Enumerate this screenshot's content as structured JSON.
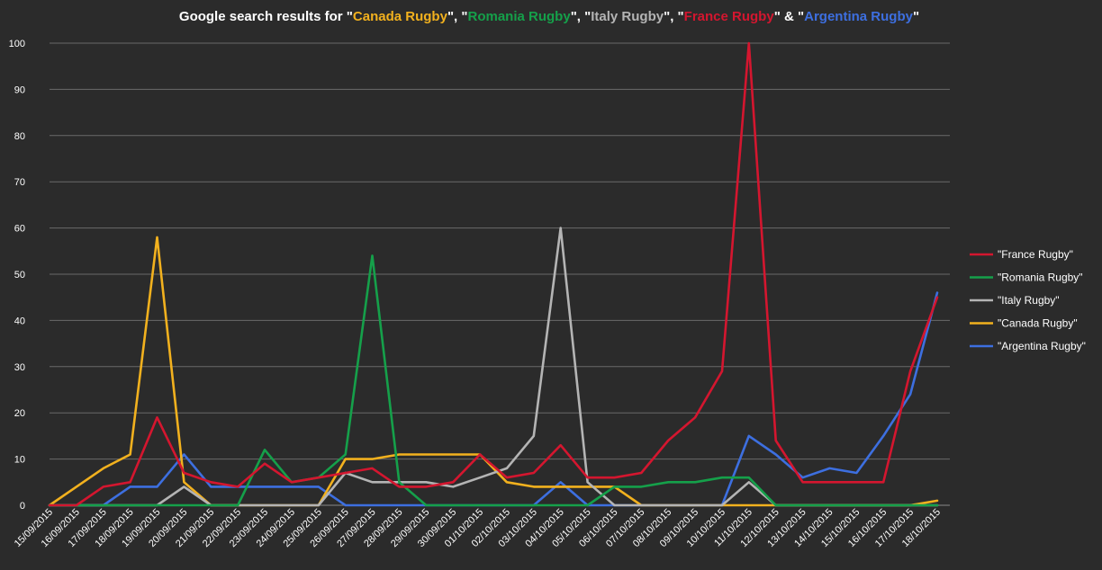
{
  "chart_data": {
    "type": "line",
    "title": {
      "parts": [
        {
          "text": "Google search results for \"",
          "color": "#ffffff"
        },
        {
          "text": "Canada Rugby",
          "color": "#f2b11e"
        },
        {
          "text": "\", \"",
          "color": "#ffffff"
        },
        {
          "text": "Romania Rugby",
          "color": "#15a04a"
        },
        {
          "text": "\", \"",
          "color": "#ffffff"
        },
        {
          "text": "Italy Rugby",
          "color": "#b4b4b4"
        },
        {
          "text": "\", \"",
          "color": "#ffffff"
        },
        {
          "text": "France Rugby",
          "color": "#d4162f"
        },
        {
          "text": "\" & \"",
          "color": "#ffffff"
        },
        {
          "text": "Argentina Rugby",
          "color": "#3d6fe0"
        },
        {
          "text": "\"",
          "color": "#ffffff"
        }
      ]
    },
    "ylim": [
      0,
      100
    ],
    "yticks": [
      0,
      10,
      20,
      30,
      40,
      50,
      60,
      70,
      80,
      90,
      100
    ],
    "grid": "horizontal",
    "legend_position": "right",
    "x": [
      "15/09/2015",
      "16/09/2015",
      "17/09/2015",
      "18/09/2015",
      "19/09/2015",
      "20/09/2015",
      "21/09/2015",
      "22/09/2015",
      "23/09/2015",
      "24/09/2015",
      "25/09/2015",
      "26/09/2015",
      "27/09/2015",
      "28/09/2015",
      "29/09/2015",
      "30/09/2015",
      "01/10/2015",
      "02/10/2015",
      "03/10/2015",
      "04/10/2015",
      "05/10/2015",
      "06/10/2015",
      "07/10/2015",
      "08/10/2015",
      "09/10/2015",
      "10/10/2015",
      "11/10/2015",
      "12/10/2015",
      "13/10/2015",
      "14/10/2015",
      "15/10/2015",
      "16/10/2015",
      "17/10/2015",
      "18/10/2015"
    ],
    "series": [
      {
        "name": "\"France Rugby\"",
        "color": "#d4162f",
        "values": [
          0,
          0,
          4,
          5,
          19,
          7,
          5,
          4,
          9,
          5,
          6,
          7,
          8,
          4,
          4,
          5,
          11,
          6,
          7,
          13,
          6,
          6,
          7,
          14,
          19,
          29,
          100,
          14,
          5,
          5,
          5,
          5,
          29,
          45
        ]
      },
      {
        "name": "\"Romania Rugby\"",
        "color": "#15a04a",
        "values": [
          0,
          0,
          0,
          0,
          0,
          0,
          0,
          0,
          12,
          5,
          6,
          11,
          54,
          5,
          0,
          0,
          0,
          0,
          0,
          0,
          0,
          4,
          4,
          5,
          5,
          6,
          6,
          0,
          0,
          0,
          0,
          0,
          0,
          0
        ]
      },
      {
        "name": "\"Italy Rugby\"",
        "color": "#b4b4b4",
        "values": [
          0,
          0,
          0,
          0,
          0,
          4,
          0,
          0,
          0,
          0,
          0,
          7,
          5,
          5,
          5,
          4,
          6,
          8,
          15,
          60,
          5,
          0,
          0,
          0,
          0,
          0,
          5,
          0,
          0,
          0,
          0,
          0,
          0,
          0
        ]
      },
      {
        "name": "\"Canada Rugby\"",
        "color": "#f2b11e",
        "values": [
          0,
          4,
          8,
          11,
          58,
          5,
          0,
          0,
          0,
          0,
          0,
          10,
          10,
          11,
          11,
          11,
          11,
          5,
          4,
          4,
          4,
          4,
          0,
          0,
          0,
          0,
          0,
          0,
          0,
          0,
          0,
          0,
          0,
          1
        ]
      },
      {
        "name": "\"Argentina Rugby\"",
        "color": "#3d6fe0",
        "values": [
          0,
          0,
          0,
          4,
          4,
          11,
          4,
          4,
          4,
          4,
          4,
          0,
          0,
          0,
          0,
          0,
          0,
          0,
          0,
          5,
          0,
          0,
          0,
          0,
          0,
          0,
          15,
          11,
          6,
          8,
          7,
          15,
          24,
          46
        ]
      }
    ]
  }
}
